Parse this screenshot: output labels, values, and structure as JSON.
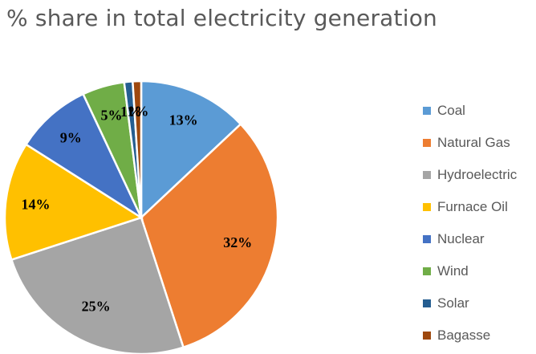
{
  "chart_data": {
    "type": "pie",
    "title": "% share in total electricity generation",
    "categories": [
      "Coal",
      "Natural Gas",
      "Hydroelectric",
      "Furnace Oil",
      "Nuclear",
      "Wind",
      "Solar",
      "Bagasse"
    ],
    "values": [
      13,
      32,
      25,
      14,
      9,
      5,
      1,
      1
    ],
    "data_labels": [
      "13%",
      "32%",
      "25%",
      "14%",
      "9%",
      "5%",
      "1%",
      "1%"
    ],
    "colors": [
      "#5B9BD5",
      "#ED7D31",
      "#A5A5A5",
      "#FFC000",
      "#4472C4",
      "#70AD47",
      "#255E91",
      "#9E480E"
    ],
    "legend_position": "right"
  }
}
